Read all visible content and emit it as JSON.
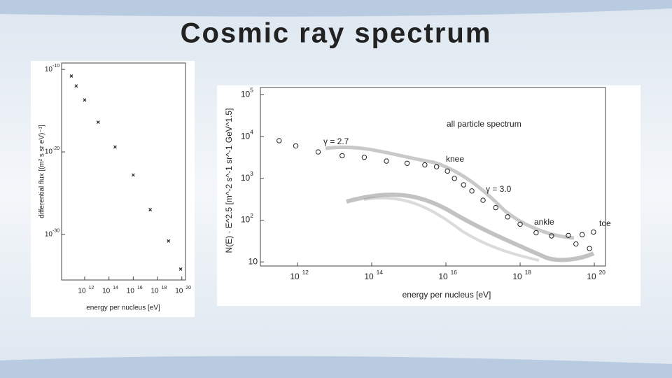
{
  "slide": {
    "title": "Cosmic ray spectrum"
  },
  "chart_data": [
    {
      "type": "scatter",
      "xlabel": "energy per nucleus [eV]",
      "ylabel": "differential flux [(m² s sr eV)⁻¹]",
      "log_x": true,
      "log_y": true,
      "color": "#222222",
      "marker": "cross",
      "xlim": [
        12600000000.0,
        2e+20
      ],
      "ylim": [
        3e-36,
        6e-10
      ],
      "xticks": [
        {
          "value": 1000000000000.0,
          "label": "10",
          "sup": "12"
        },
        {
          "value": 100000000000000.0,
          "label": "10",
          "sup": "14"
        },
        {
          "value": 1e+16,
          "label": "10",
          "sup": "16"
        },
        {
          "value": 1e+18,
          "label": "10",
          "sup": "18"
        },
        {
          "value": 1e+20,
          "label": "10",
          "sup": "20"
        }
      ],
      "yticks": [
        {
          "value": 1e-10,
          "label": "10",
          "sup": "-10"
        },
        {
          "value": 1e-20,
          "label": "10",
          "sup": "-20"
        },
        {
          "value": 1e-30,
          "label": "10",
          "sup": "-30"
        }
      ],
      "x": [
        80000000000.0,
        200000000000.0,
        1000000000000.0,
        13000000000000.0,
        320000000000000.0,
        1e+16,
        2.5e+17,
        8e+18,
        8e+19
      ],
      "values": [
        1.6e-11,
        1e-12,
        2e-14,
        4e-17,
        4e-20,
        1.6e-23,
        1e-27,
        1.6e-31,
        6.3e-35
      ],
      "annotations": []
    },
    {
      "type": "scatter",
      "xlabel": "energy per nucleus [eV]",
      "ylabel": "N(E) · E^2.5 [m^-2 s^-1 sr^-1 GeV^1.5]",
      "log_x": true,
      "log_y": true,
      "color": "#222222",
      "marker": "circle",
      "xlim": [
        100000000000.0,
        2e+20
      ],
      "ylim": [
        8,
        150000.0
      ],
      "xticks": [
        {
          "value": 1000000000000.0,
          "label": "10",
          "sup": "12"
        },
        {
          "value": 100000000000000.0,
          "label": "10",
          "sup": "14"
        },
        {
          "value": 1e+16,
          "label": "10",
          "sup": "16"
        },
        {
          "value": 1e+18,
          "label": "10",
          "sup": "18"
        },
        {
          "value": 1e+20,
          "label": "10",
          "sup": "20"
        }
      ],
      "yticks": [
        10,
        {
          "value": 100,
          "label": "10",
          "sup": "2"
        },
        {
          "value": 1000,
          "label": "10",
          "sup": "3"
        },
        {
          "value": 10000,
          "label": "10",
          "sup": "4"
        },
        {
          "value": 100000,
          "label": "10",
          "sup": "5"
        }
      ],
      "x": [
        320000000000.0,
        900000000000.0,
        3600000000000.0,
        16000000000000.0,
        63000000000000.0,
        250000000000000.0,
        900000000000000.0,
        2700000000000000.0,
        5600000000000000.0,
        1.1e+16,
        1.7e+16,
        3e+16,
        5e+16,
        1e+17,
        2.2e+17,
        4.6e+17,
        1e+18,
        2.7e+18,
        7e+18,
        2e+19,
        3.2e+19,
        4.7e+19,
        7.4e+19,
        9.5e+19
      ],
      "values": [
        8000,
        6000,
        4300,
        3500,
        3200,
        2600,
        2300,
        2100,
        1900,
        1500,
        1000,
        700,
        500,
        300,
        200,
        120,
        80,
        50,
        42,
        43,
        27,
        45,
        21,
        52
      ],
      "annotations": [
        "all particle spectrum",
        "γ = 2.7",
        "knee",
        "γ = 3.0",
        "ankle",
        "toe"
      ]
    }
  ]
}
